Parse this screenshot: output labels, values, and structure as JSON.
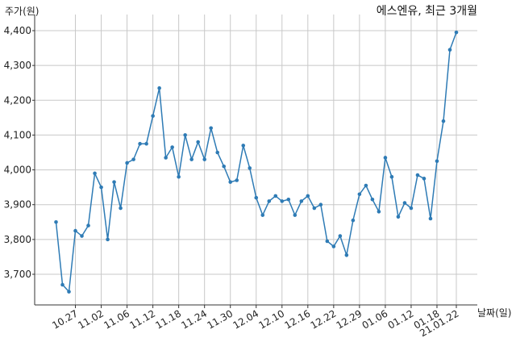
{
  "chart_data": {
    "type": "line",
    "title": "에스엔유, 최근 3개월",
    "ylabel": "주가(원)",
    "xlabel": "날짜(일)",
    "ylim": [
      3610,
      4420
    ],
    "yticks": [
      3700,
      3800,
      3900,
      4000,
      4100,
      4200,
      4300,
      4400
    ],
    "ytick_labels": [
      "3,700",
      "3,800",
      "3,900",
      "4,000",
      "4,100",
      "4,200",
      "4,300",
      "4,400"
    ],
    "xtick_labels": [
      "10.27",
      "11.02",
      "11.06",
      "11.12",
      "11.18",
      "11.24",
      "11.30",
      "12.04",
      "12.10",
      "12.16",
      "12.22",
      "12.29",
      "01.06",
      "01.12",
      "01.18",
      "21.01.22"
    ],
    "xtick_index": [
      3,
      7,
      11,
      15,
      19,
      23,
      27,
      31,
      35,
      39,
      43,
      47,
      51,
      55,
      59,
      62
    ],
    "grid": true,
    "color": "#2e7bb5",
    "series": [
      {
        "values": [
          3850,
          3670,
          3650,
          3825,
          3810,
          3840,
          3990,
          3950,
          3800,
          3965,
          3890,
          4020,
          4030,
          4075,
          4075,
          4155,
          4235,
          4035,
          4065,
          3980,
          4100,
          4030,
          4080,
          4030,
          4120,
          4050,
          4010,
          3965,
          3970,
          4070,
          4005,
          3920,
          3870,
          3910,
          3925,
          3910,
          3915,
          3870,
          3910,
          3925,
          3890,
          3900,
          3795,
          3780,
          3810,
          3755,
          3855,
          3930,
          3955,
          3915,
          3880,
          4035,
          3980,
          3865,
          3905,
          3890,
          3985,
          3975,
          3860,
          4025,
          4140,
          4345,
          4395
        ]
      }
    ]
  }
}
